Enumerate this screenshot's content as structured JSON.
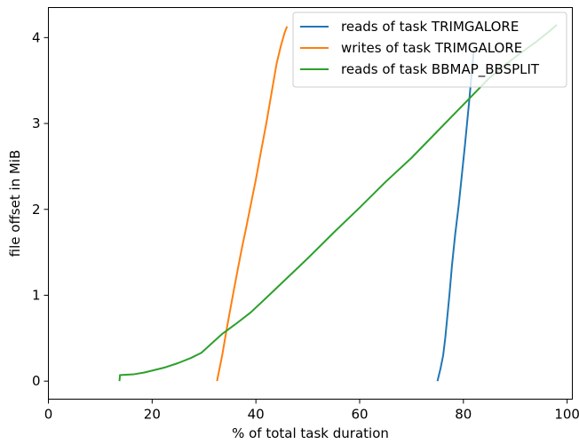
{
  "chart_data": {
    "type": "line",
    "xlabel": "% of total task duration",
    "ylabel": "file offset in MiB",
    "xlim": [
      0,
      101
    ],
    "ylim": [
      -0.21,
      4.35
    ],
    "xticks": [
      0,
      20,
      40,
      60,
      80,
      100
    ],
    "yticks": [
      0,
      1,
      2,
      3,
      4
    ],
    "grid": false,
    "legend_position": "top-right",
    "series": [
      {
        "name": "reads of task TRIMGALORE",
        "color": "#1f77b4",
        "x": [
          75.0,
          75.6,
          76.1,
          76.5,
          76.9,
          77.3,
          77.8,
          78.4,
          79.1,
          79.7,
          80.3,
          80.7,
          81.1,
          81.4,
          81.7,
          82.0
        ],
        "y": [
          0.0,
          0.15,
          0.3,
          0.5,
          0.75,
          1.0,
          1.35,
          1.7,
          2.05,
          2.4,
          2.75,
          3.0,
          3.25,
          3.45,
          3.65,
          3.85
        ]
      },
      {
        "name": "writes of task TRIMGALORE",
        "color": "#ff7f0e",
        "x": [
          32.5,
          33.5,
          34.5,
          35.5,
          36.5,
          37.3,
          38.0,
          39.0,
          40.0,
          41.0,
          42.0,
          43.0,
          44.0,
          44.8,
          45.5,
          46.0
        ],
        "y": [
          0.0,
          0.3,
          0.65,
          0.98,
          1.3,
          1.55,
          1.75,
          2.05,
          2.35,
          2.68,
          3.0,
          3.35,
          3.7,
          3.9,
          4.05,
          4.13
        ]
      },
      {
        "name": "reads of task BBMAP_BBSPLIT",
        "color": "#2ca02c",
        "x": [
          13.7,
          13.8,
          16.5,
          18.5,
          20.5,
          22.5,
          25.0,
          27.5,
          29.5,
          31.5,
          33.5,
          36.0,
          39.0,
          42.0,
          46.0,
          50.0,
          55.0,
          60.0,
          65.0,
          70.0,
          75.0,
          80.0,
          85.0,
          88.0,
          91.0,
          94.0,
          96.5,
          98.0
        ],
        "y": [
          0.0,
          0.07,
          0.08,
          0.1,
          0.13,
          0.16,
          0.21,
          0.27,
          0.33,
          0.44,
          0.55,
          0.66,
          0.8,
          0.97,
          1.2,
          1.43,
          1.73,
          2.02,
          2.32,
          2.6,
          2.91,
          3.22,
          3.53,
          3.68,
          3.82,
          3.95,
          4.07,
          4.15
        ]
      }
    ]
  }
}
